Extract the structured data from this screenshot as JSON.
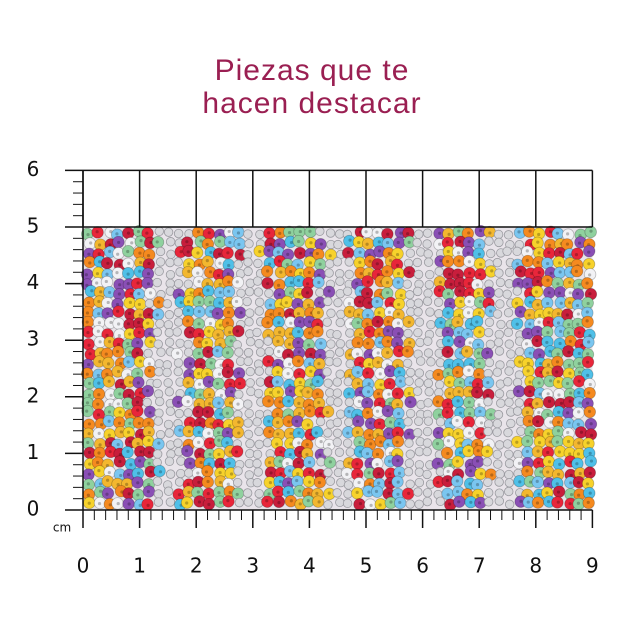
{
  "header": {
    "title_lines": [
      "Piezas que te",
      "hacen destacar"
    ]
  },
  "ruler": {
    "x_labels": [
      "0",
      "1",
      "2",
      "3",
      "4",
      "5",
      "6",
      "7",
      "8",
      "9"
    ],
    "y_labels": [
      "0",
      "1",
      "2",
      "3",
      "4",
      "5",
      "6"
    ],
    "unit": "cm"
  }
}
